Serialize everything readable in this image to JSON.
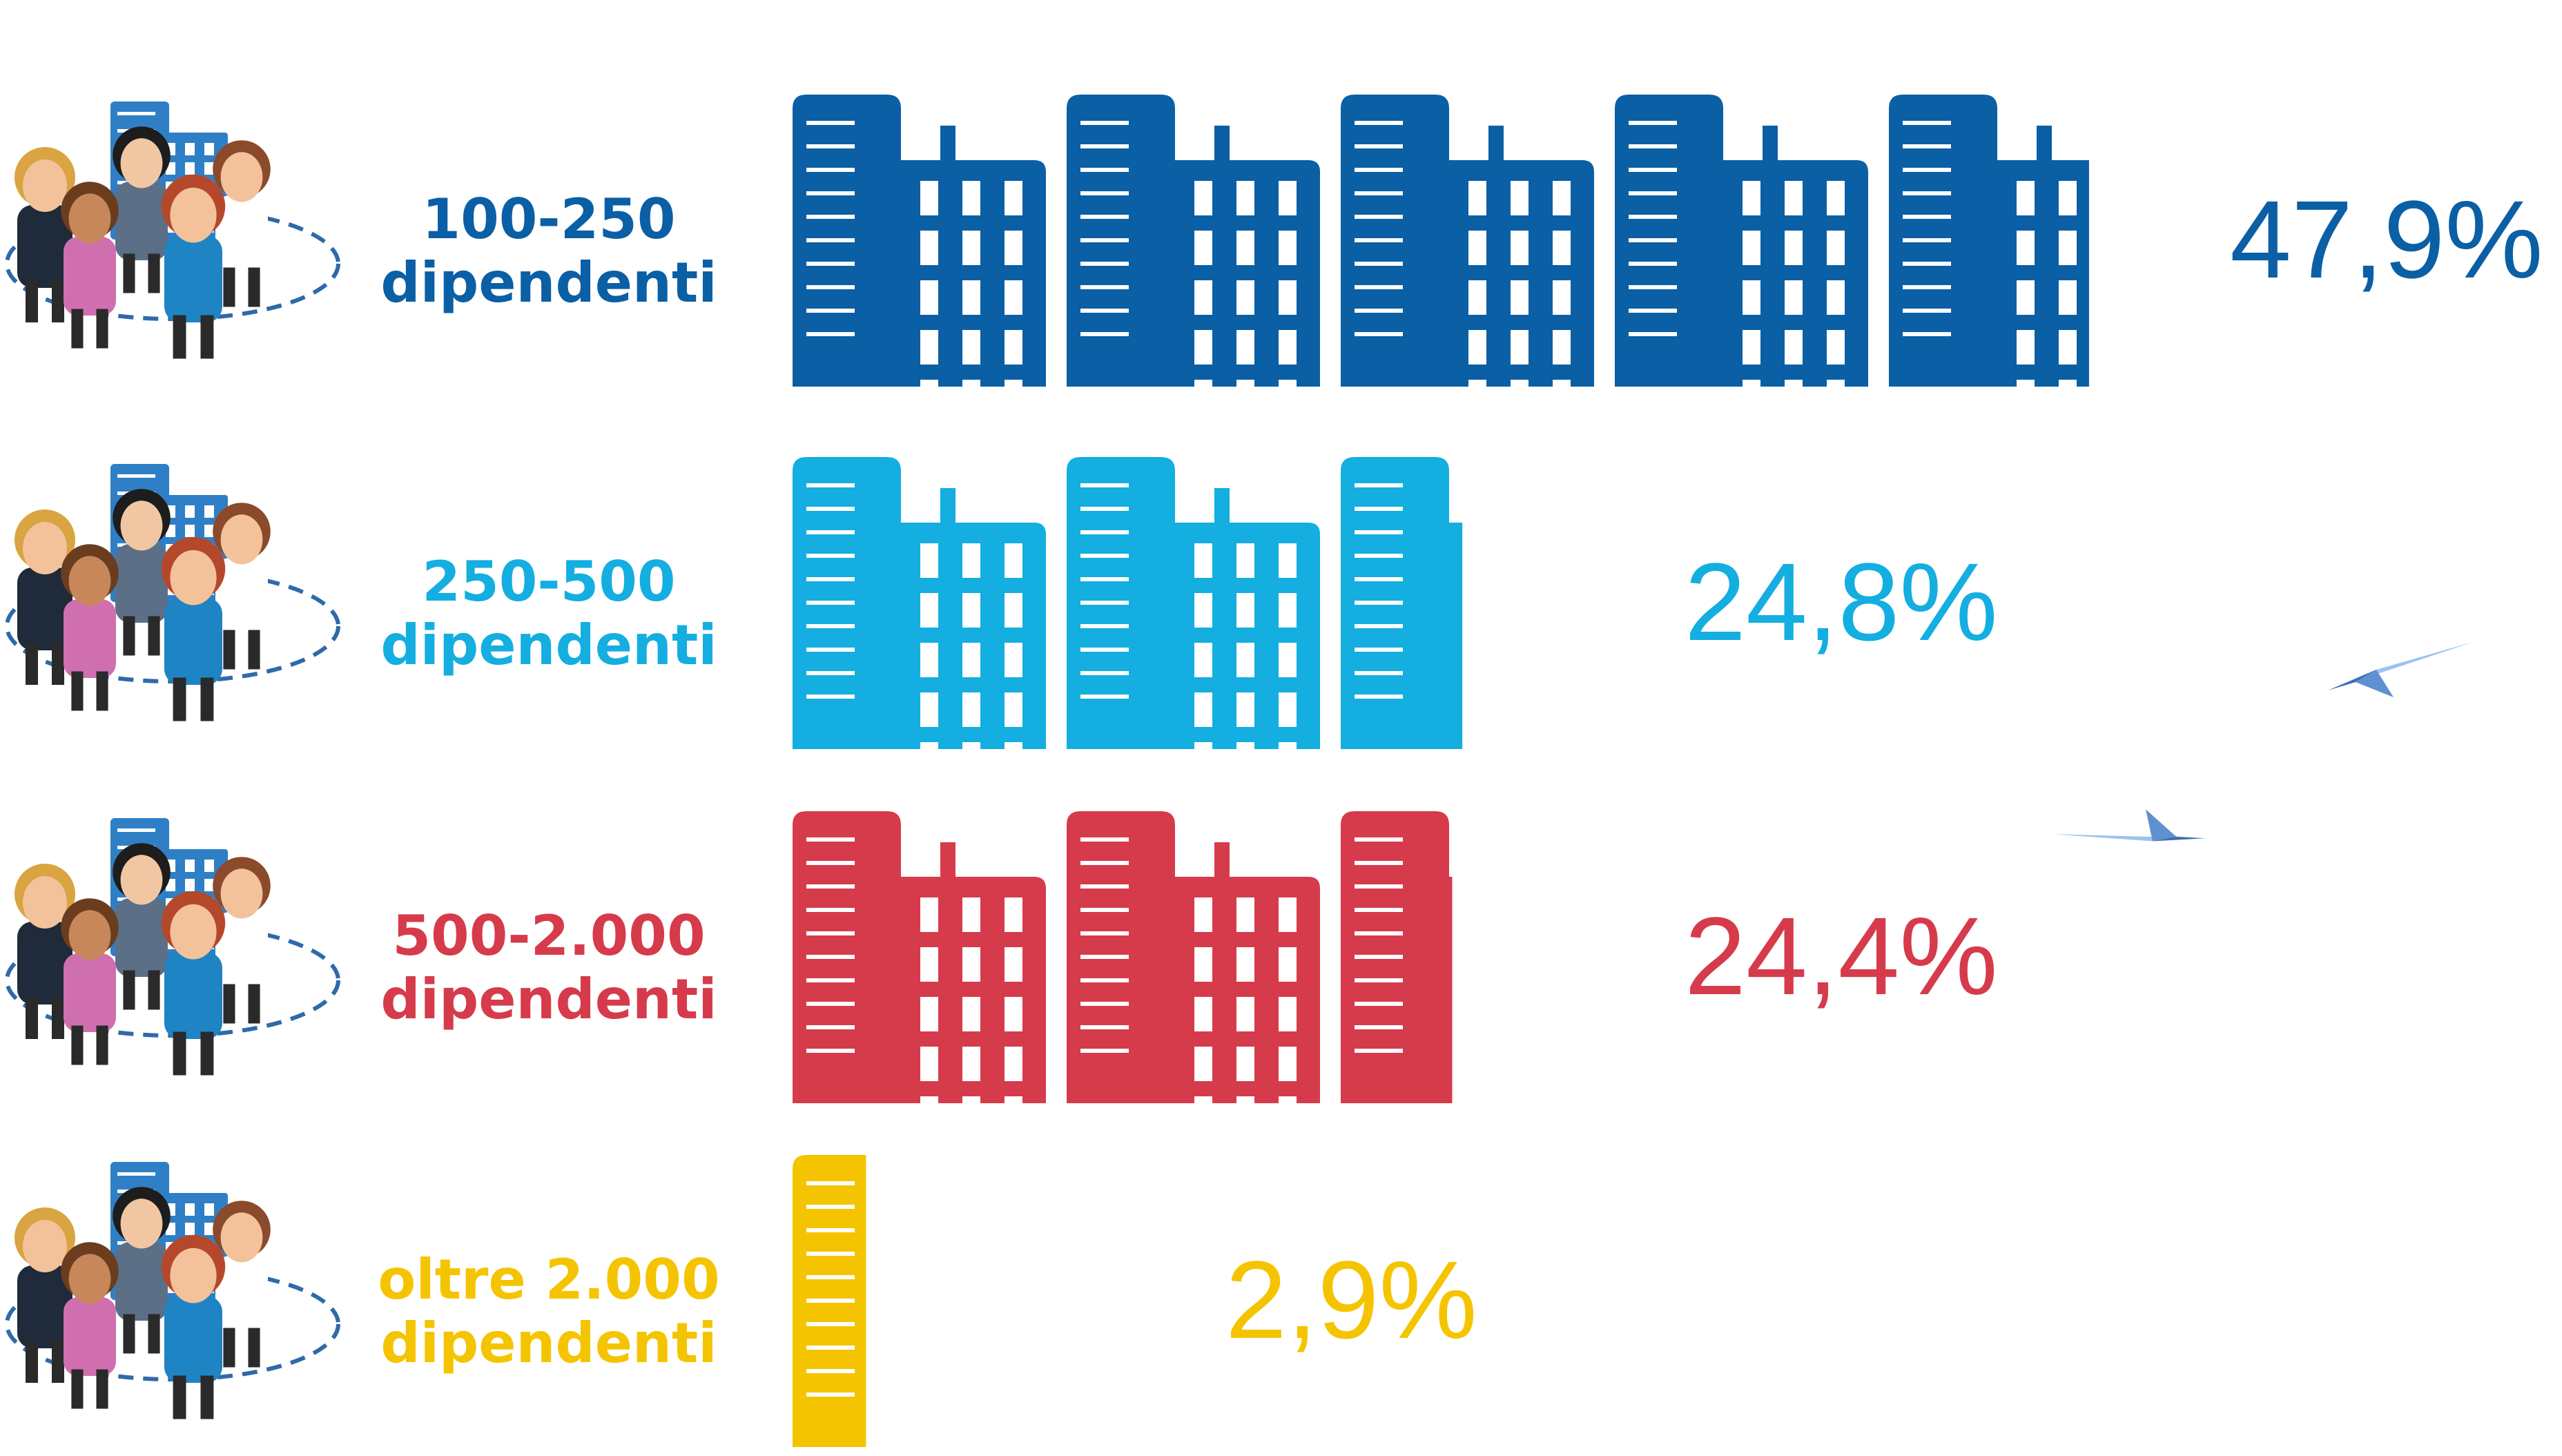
{
  "chart_data": {
    "type": "bar",
    "orientation": "horizontal",
    "unit": "%",
    "categories": [
      {
        "line1": "100-250",
        "line2": "dipendenti"
      },
      {
        "line1": "250-500",
        "line2": "dipendenti"
      },
      {
        "line1": "500-2.000",
        "line2": "dipendenti"
      },
      {
        "line1": "oltre 2.000",
        "line2": "dipendenti"
      }
    ],
    "values": [
      47.9,
      24.8,
      24.4,
      2.9
    ],
    "value_labels": [
      "47,9%",
      "24,8%",
      "24,4%",
      "2,9%"
    ],
    "colors": [
      "#0b5fa5",
      "#14aee0",
      "#d63b4b",
      "#f5c400"
    ],
    "icon": "office-building-icon",
    "each_icon_represents_percent": 10
  },
  "decorations": {
    "people_group_icon": "people-group-icon",
    "paper_plane_icon": "paper-plane-icon",
    "plane_color": "#7fb2ea"
  }
}
